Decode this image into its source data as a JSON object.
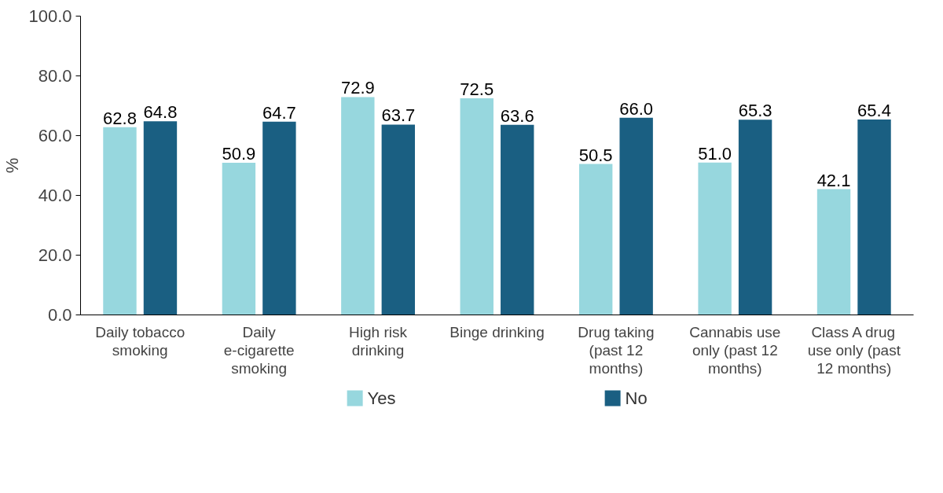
{
  "chart_data": {
    "type": "bar",
    "ylabel": "%",
    "categories": [
      "Daily tobacco smoking",
      "Daily e-cigarette smoking",
      "High risk drinking",
      "Binge drinking",
      "Drug taking (past 12 months)",
      "Cannabis use only (past 12 months)",
      "Class A drug use only (past 12 months)"
    ],
    "series": [
      {
        "name": "Yes",
        "color": "#97d7de",
        "values": [
          62.8,
          50.9,
          72.9,
          72.5,
          50.5,
          51.0,
          42.1
        ],
        "value_labels": [
          "62.8",
          "50.9",
          "72.9",
          "72.5",
          "50.5",
          "51.0",
          "42.1"
        ]
      },
      {
        "name": "No",
        "color": "#1a5f82",
        "values": [
          64.8,
          64.7,
          63.7,
          63.6,
          66.0,
          65.3,
          65.4
        ],
        "value_labels": [
          "64.8",
          "64.7",
          "63.7",
          "63.6",
          "66.0",
          "65.3",
          "65.4"
        ]
      }
    ],
    "ylim": [
      0,
      100
    ],
    "yticks": [
      {
        "value": 0,
        "label": "0.0"
      },
      {
        "value": 20,
        "label": "20.0"
      },
      {
        "value": 40,
        "label": "40.0"
      },
      {
        "value": 60,
        "label": "60.0"
      },
      {
        "value": 80,
        "label": "80.0"
      },
      {
        "value": 100,
        "label": "100.0"
      }
    ],
    "grid": false,
    "legend": "bottom"
  }
}
